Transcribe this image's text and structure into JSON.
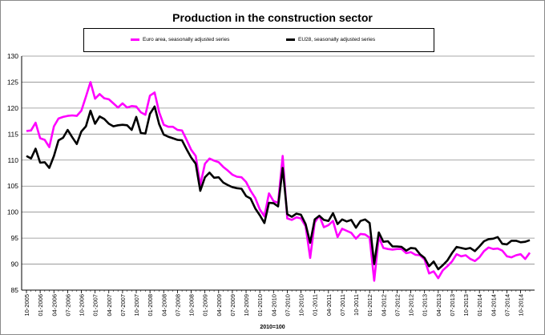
{
  "chart_data": {
    "type": "line",
    "title": "Production in the construction sector",
    "xlabel": "2010=100",
    "ylabel": "",
    "ylim": [
      85,
      130
    ],
    "yticks": [
      85,
      90,
      95,
      100,
      105,
      110,
      115,
      120,
      125,
      130
    ],
    "x_tick_labels": [
      "10-2005",
      "01-2006",
      "04-2006",
      "07-2006",
      "10-2006",
      "01-2007",
      "04-2007",
      "07-2007",
      "10-2007",
      "01-2008",
      "04-2008",
      "07-2008",
      "10-2008",
      "01-2009",
      "04-2009",
      "07-2009",
      "10-2009",
      "01-2010",
      "04-2010",
      "07-2010",
      "10-2010",
      "01-2011",
      "04-2011",
      "07-2011",
      "10-2011",
      "01-2012",
      "04-2012",
      "07-2012",
      "10-2012",
      "01-2013",
      "04-2013",
      "07-2013",
      "10-2013",
      "01-2014",
      "04-2014",
      "07-2014",
      "10-2014"
    ],
    "grid": true,
    "legend": "top",
    "series": [
      {
        "name": "Euro area, seasonally adjusted series",
        "color": "#ff00ff",
        "values": [
          115.6,
          115.7,
          117.2,
          114.2,
          113.9,
          112.5,
          116.5,
          118.0,
          118.3,
          118.5,
          118.6,
          118.5,
          119.5,
          122.2,
          125.0,
          121.8,
          122.7,
          121.9,
          121.7,
          120.9,
          120.1,
          120.9,
          120.1,
          120.4,
          120.3,
          119.2,
          118.7,
          122.4,
          123.0,
          119.2,
          116.8,
          116.4,
          116.4,
          115.8,
          115.7,
          113.9,
          112.0,
          110.8,
          105.2,
          109.3,
          110.3,
          109.9,
          109.6,
          108.7,
          108.0,
          107.2,
          106.8,
          106.7,
          105.8,
          104.1,
          102.7,
          100.5,
          99.2,
          103.6,
          102.1,
          101.8,
          110.8,
          98.8,
          98.5,
          99.0,
          98.8,
          97.3,
          91.2,
          98.0,
          99.3,
          97.1,
          97.5,
          98.3,
          95.2,
          96.8,
          96.4,
          96.0,
          94.9,
          95.8,
          95.7,
          95.1,
          86.8,
          95.2,
          93.1,
          92.9,
          92.8,
          92.9,
          92.9,
          92.1,
          92.3,
          91.8,
          91.7,
          90.9,
          88.2,
          88.6,
          87.3,
          88.8,
          89.6,
          90.5,
          91.9,
          91.5,
          91.7,
          91.0,
          90.6,
          91.3,
          92.5,
          93.2,
          92.9,
          93.0,
          92.6,
          91.5,
          91.3,
          91.7,
          91.9,
          91.0,
          92.2
        ]
      },
      {
        "name": "EU28, seasonally adjusted series",
        "color": "#000000",
        "values": [
          110.8,
          110.3,
          112.2,
          109.5,
          109.6,
          108.5,
          110.8,
          113.8,
          114.3,
          115.8,
          114.4,
          113.1,
          115.5,
          116.5,
          119.5,
          117.0,
          118.4,
          117.9,
          117.0,
          116.5,
          116.7,
          116.8,
          116.7,
          115.8,
          118.3,
          115.2,
          115.1,
          118.9,
          120.3,
          116.9,
          114.9,
          114.5,
          114.2,
          113.9,
          113.8,
          112.1,
          110.5,
          109.3,
          104.1,
          106.7,
          107.6,
          106.6,
          106.7,
          105.7,
          105.2,
          104.8,
          104.6,
          104.5,
          103.1,
          102.6,
          100.7,
          99.4,
          97.9,
          101.8,
          101.7,
          101.1,
          108.5,
          99.6,
          99.1,
          99.7,
          99.5,
          97.7,
          94.1,
          98.6,
          99.3,
          98.5,
          98.3,
          99.8,
          97.7,
          98.6,
          98.2,
          98.5,
          97.0,
          98.3,
          98.6,
          97.9,
          90.0,
          96.1,
          94.3,
          94.4,
          93.4,
          93.4,
          93.3,
          92.6,
          93.1,
          93.0,
          91.9,
          91.2,
          89.6,
          90.5,
          89.0,
          89.8,
          90.7,
          92.1,
          93.3,
          93.1,
          92.9,
          93.1,
          92.5,
          93.4,
          94.4,
          94.8,
          94.9,
          95.2,
          93.9,
          93.8,
          94.5,
          94.5,
          94.2,
          94.3,
          94.6
        ]
      }
    ]
  }
}
